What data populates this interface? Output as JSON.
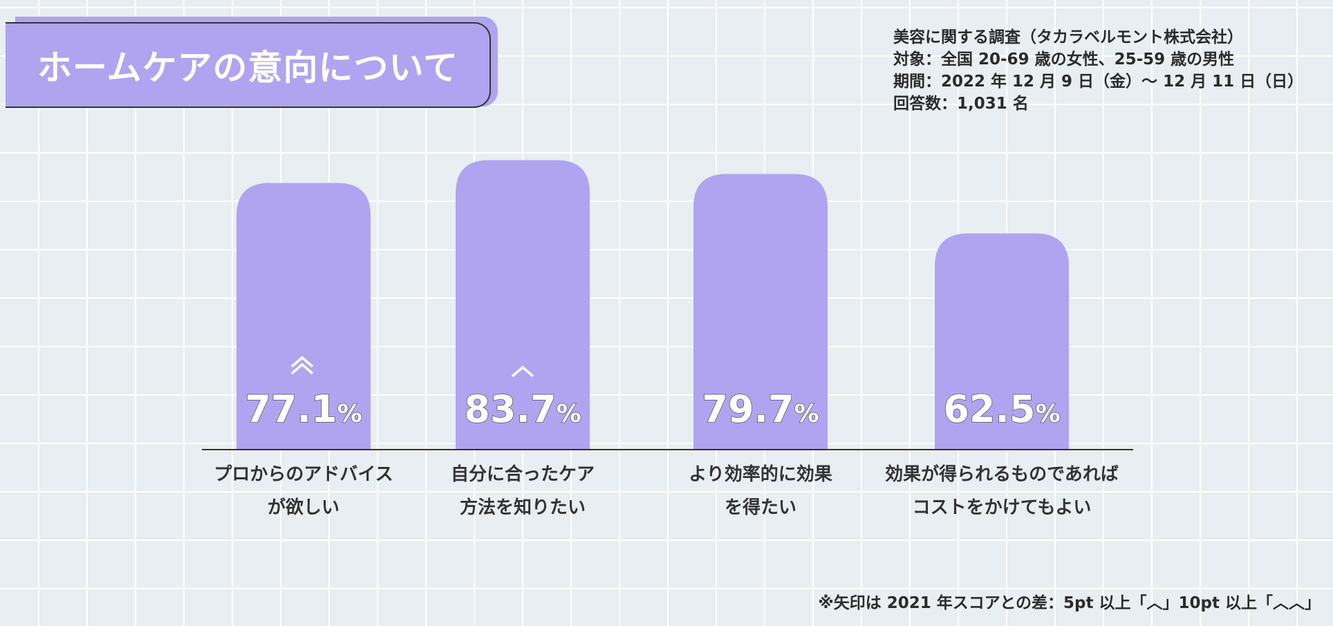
{
  "header": {
    "title": "ホームケアの意向について"
  },
  "survey_info": {
    "line1": "美容に関する調査（タカラベルモント株式会社）",
    "line2": "対象：全国 20-69 歳の女性、25-59 歳の男性",
    "line3": "期間：2022 年 12 月 9 日（金）〜 12 月 11 日（日）",
    "line4": "回答数：1,031 名"
  },
  "footnote": "※矢印は 2021 年スコアとの差：5pt 以上「︿」10pt 以上「︿︿」",
  "colors": {
    "bar": "#b0a4f0",
    "background": "#e8eef1",
    "grid": "#ffffff",
    "axis": "#333333"
  },
  "chart_data": {
    "type": "bar",
    "unit": "%",
    "categories": [
      [
        "プロからのアドバイス",
        "が欲しい"
      ],
      [
        "自分に合ったケア",
        "方法を知りたい"
      ],
      [
        "より効率的に効果",
        "を得たい"
      ],
      [
        "効果が得られるものであれば",
        "コストをかけてもよい"
      ]
    ],
    "values": [
      77.1,
      83.7,
      79.7,
      62.5
    ],
    "value_labels": [
      "77.1",
      "83.7",
      "79.7",
      "62.5"
    ],
    "change_vs_2021": [
      "double-up-arrow",
      "single-up-arrow",
      "none",
      "none"
    ]
  }
}
